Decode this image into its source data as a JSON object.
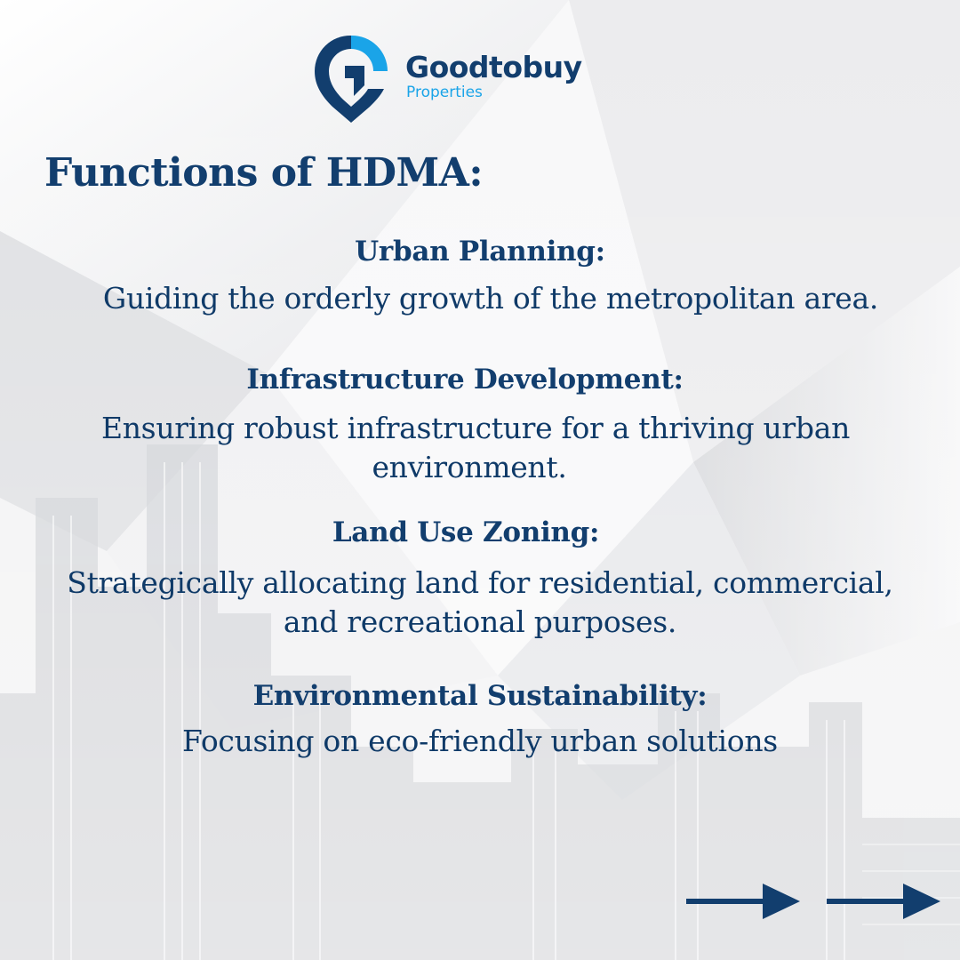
{
  "colors": {
    "navy": "#123e6e",
    "text_dark": "#0f3a68",
    "brand_cyan": "#1aa4e8",
    "background": "#f2f2f3"
  },
  "brand": {
    "name": "Goodtobuy",
    "subtitle": "Properties",
    "icon": "location-pin-g-logo"
  },
  "title": "Functions of HDMA:",
  "sections": [
    {
      "heading": "Urban Planning:",
      "lines": [
        "Guiding the orderly growth of the metropolitan area."
      ]
    },
    {
      "heading": "Infrastructure Development:",
      "lines": [
        "Ensuring robust infrastructure for a thriving urban",
        "environment."
      ]
    },
    {
      "heading": "Land Use Zoning:",
      "lines": [
        "Strategically allocating land for residential, commercial,",
        "and recreational purposes."
      ]
    },
    {
      "heading": "Environmental Sustainability:",
      "lines": [
        "Focusing on eco-friendly urban solutions"
      ]
    }
  ],
  "navigation": {
    "arrows": [
      "arrow-right-icon",
      "arrow-right-icon"
    ]
  }
}
